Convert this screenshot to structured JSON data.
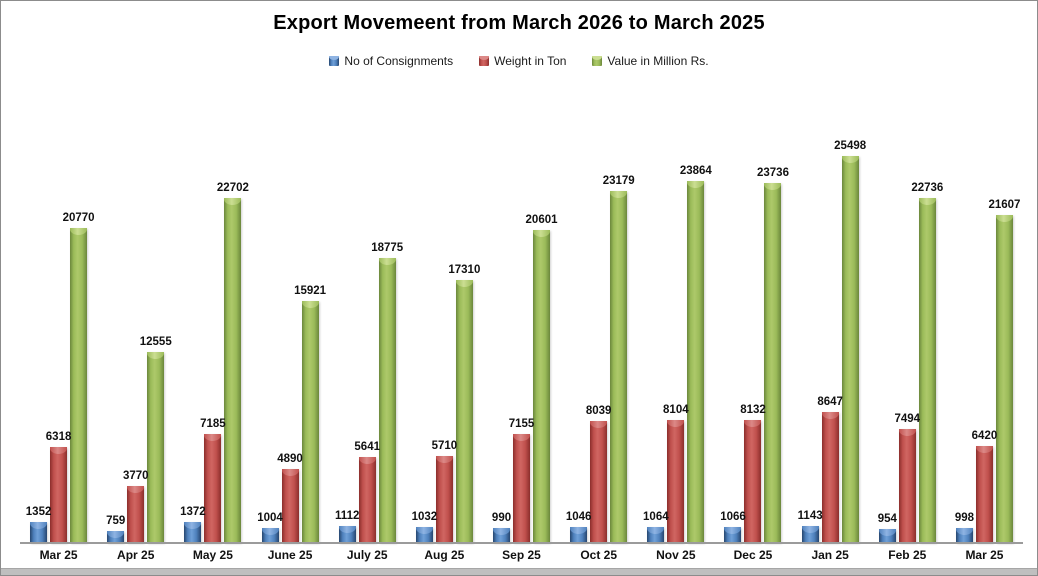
{
  "frame": {
    "background": "#FFFFFF",
    "border_color": "#8C8C8C",
    "bottom_strip_color": "#BFBFBF",
    "axis_line_color": "#9B9B9B"
  },
  "chart_data": {
    "type": "bar",
    "title": "Export Movemeent from March 2026 to March 2025",
    "xlabel": "",
    "ylabel": "",
    "ylim": [
      0,
      25498
    ],
    "grid": false,
    "legend_position": "top",
    "data_labels": true,
    "categories": [
      "Mar 25",
      "Apr 25",
      "May 25",
      "June 25",
      "July 25",
      "Aug 25",
      "Sep 25",
      "Oct 25",
      "Nov 25",
      "Dec 25",
      "Jan 25",
      "Feb 25",
      "Mar 25"
    ],
    "series": [
      {
        "name": "No of Consignments",
        "color": "#4F81BD",
        "color_dark": "#26466F",
        "color_light": "#6FA0D8",
        "color_cap": "#8FB4E3",
        "values": [
          1352,
          759,
          1372,
          1004,
          1112,
          1032,
          990,
          1046,
          1064,
          1066,
          1143,
          954,
          998
        ]
      },
      {
        "name": "Weight in Ton",
        "color": "#C0504D",
        "color_dark": "#8B2E2C",
        "color_light": "#D06662",
        "color_cap": "#DC8987",
        "values": [
          6318,
          3770,
          7185,
          4890,
          5641,
          5710,
          7155,
          8039,
          8104,
          8132,
          8647,
          7494,
          6420
        ]
      },
      {
        "name": "Value in Million Rs.",
        "color": "#9BBB59",
        "color_dark": "#6B873C",
        "color_light": "#ADC96A",
        "color_cap": "#CBDE92",
        "values": [
          20770,
          12555,
          22702,
          15921,
          18775,
          17310,
          20601,
          23179,
          23864,
          23736,
          25498,
          22736,
          21607
        ]
      }
    ]
  }
}
